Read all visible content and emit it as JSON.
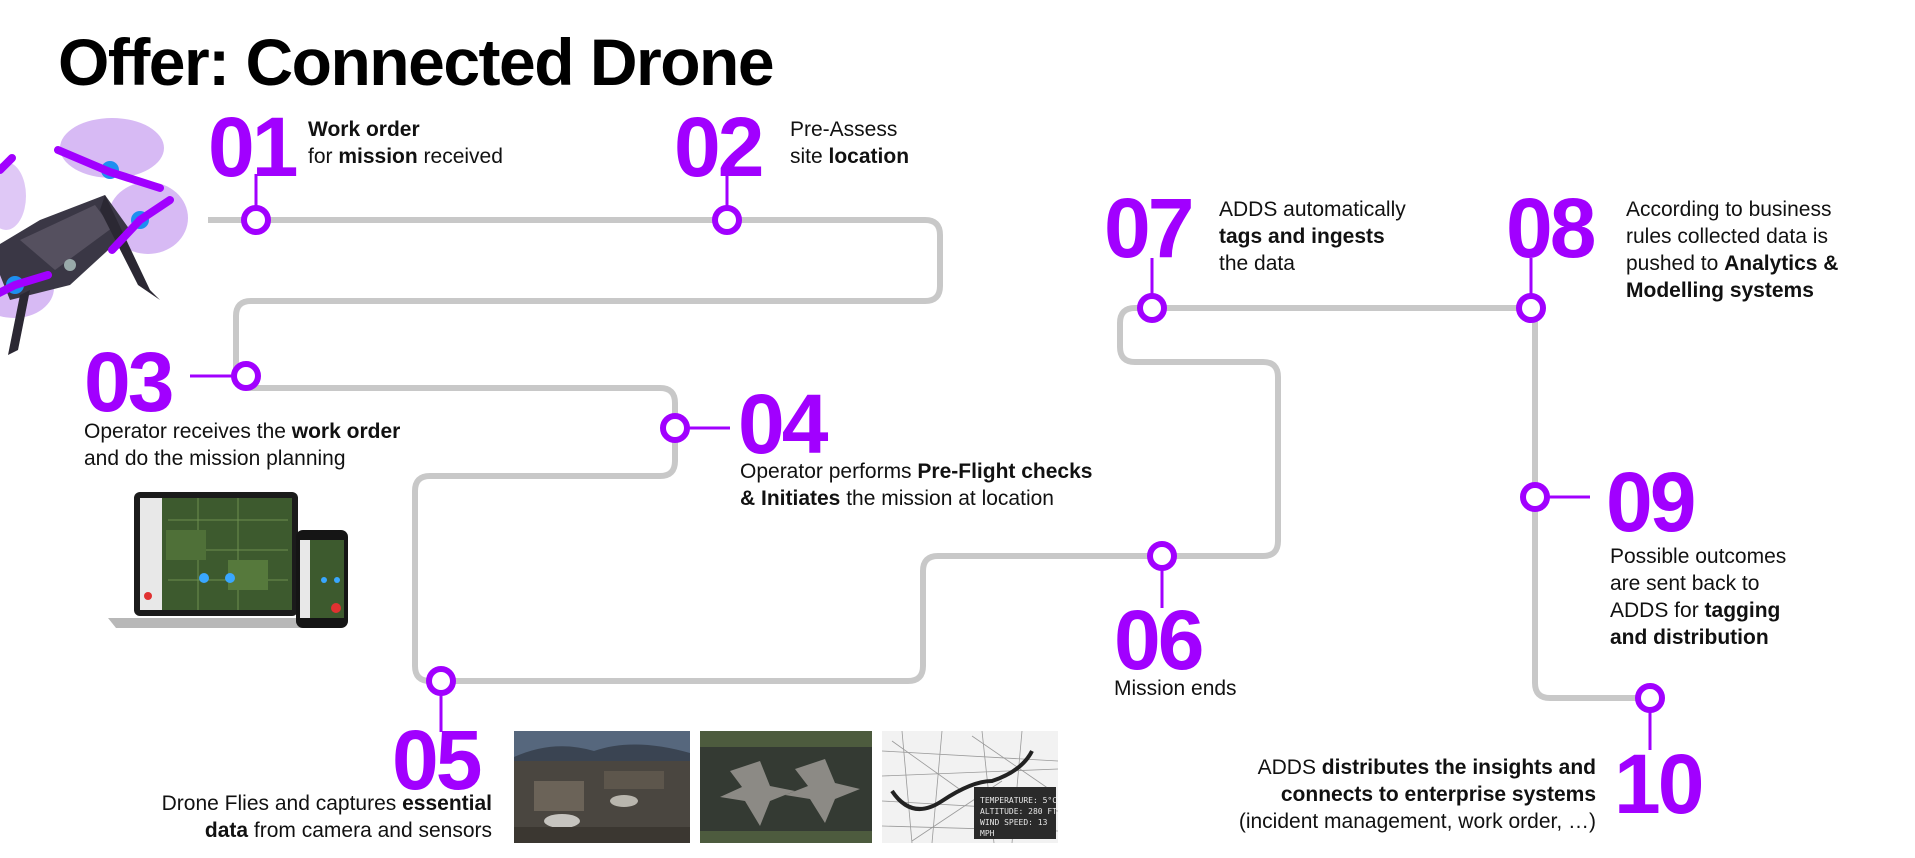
{
  "title": "Offer: Connected Drone",
  "colors": {
    "accent": "#a100ff",
    "path": "#c8c8c8",
    "text": "#111111"
  },
  "steps": {
    "s01": {
      "number": "01",
      "l1": "Work order",
      "l2a": "for ",
      "l2b": "mission",
      "l2c": " received"
    },
    "s02": {
      "number": "02",
      "l1": "Pre-Assess",
      "l2a": "site ",
      "l2b": "location"
    },
    "s03": {
      "number": "03",
      "l1a": "Operator receives the ",
      "l1b": "work order",
      "l2": "and do the mission planning"
    },
    "s04": {
      "number": "04",
      "l1a": "Operator performs ",
      "l1b": "Pre-Flight checks",
      "l2a": "& Initiates",
      "l2b": " the mission at location"
    },
    "s05": {
      "number": "05",
      "l1a": "Drone Flies and captures ",
      "l1b": "essential",
      "l2a": "data",
      "l2b": " from camera and sensors"
    },
    "s06": {
      "number": "06",
      "l1": "Mission ends"
    },
    "s07": {
      "number": "07",
      "l1": "ADDS automatically",
      "l2": "tags and ingests",
      "l3": "the data"
    },
    "s08": {
      "number": "08",
      "l1": "According to business",
      "l2": "rules collected data is",
      "l3a": "pushed to ",
      "l3b": "Analytics &",
      "l4": "Modelling systems"
    },
    "s09": {
      "number": "09",
      "l1": "Possible outcomes",
      "l2": "are sent back to",
      "l3a": "ADDS for ",
      "l3b": "tagging",
      "l4": "and distribution"
    },
    "s10": {
      "number": "10",
      "l1a": "ADDS ",
      "l1b": "distributes the insights and",
      "l2": "connects to enterprise systems",
      "l3": "(incident management, work order, …)"
    }
  },
  "sensor_overlay": {
    "l1": "TEMPERATURE: 5°C",
    "l2": "ALTITUDE: 280 FT",
    "l3": "WIND SPEED: 13 MPH"
  }
}
